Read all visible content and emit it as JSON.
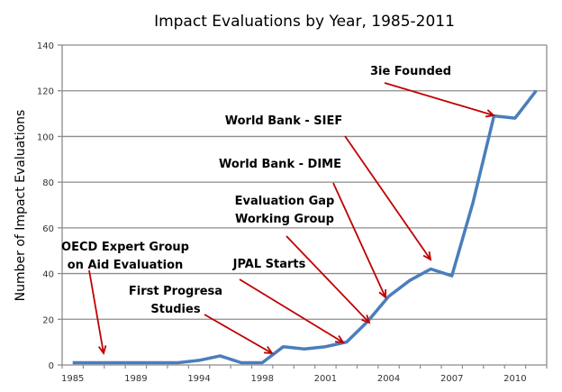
{
  "chart_data": {
    "type": "line",
    "title": "Impact Evaluations by Year, 1985-2011",
    "xlabel": "",
    "ylabel": "Number of Impact Evaluations",
    "ylim": [
      0,
      140
    ],
    "yticks": [
      0,
      20,
      40,
      60,
      80,
      100,
      120,
      140
    ],
    "grid": true,
    "legend": "none",
    "categories": [
      "1985",
      "",
      "",
      "1989",
      "",
      "",
      "1994",
      "",
      "",
      "1998",
      "",
      "",
      "2001",
      "",
      "",
      "2004",
      "",
      "",
      "2007",
      "",
      "",
      "2010",
      ""
    ],
    "series": [
      {
        "name": "Impact Evaluations",
        "color": "#4A7EBB",
        "values": [
          1,
          1,
          1,
          1,
          1,
          1,
          2,
          4,
          1,
          1,
          8,
          7,
          8,
          10,
          19,
          30,
          37,
          42,
          39,
          71,
          109,
          108,
          120
        ]
      }
    ],
    "annotations": [
      {
        "lines": [
          "OECD Expert Group",
          "on Aid Evaluation"
        ],
        "target_index": 2,
        "target_value": 5
      },
      {
        "lines": [
          "First Progresa",
          "Studies"
        ],
        "target_index": 9,
        "target_value": 5
      },
      {
        "lines": [
          "JPAL Starts"
        ],
        "target_index": 13,
        "target_value": 10
      },
      {
        "lines": [
          "Evaluation Gap",
          "Working Group"
        ],
        "target_index": 14,
        "target_value": 19
      },
      {
        "lines": [
          "World Bank - DIME"
        ],
        "target_index": 15,
        "target_value": 30
      },
      {
        "lines": [
          "World Bank - SIEF"
        ],
        "target_index": 17,
        "target_value": 46
      },
      {
        "lines": [
          "3ie Founded"
        ],
        "target_index": 20,
        "target_value": 109
      }
    ],
    "annotation_color": "#C00000"
  }
}
